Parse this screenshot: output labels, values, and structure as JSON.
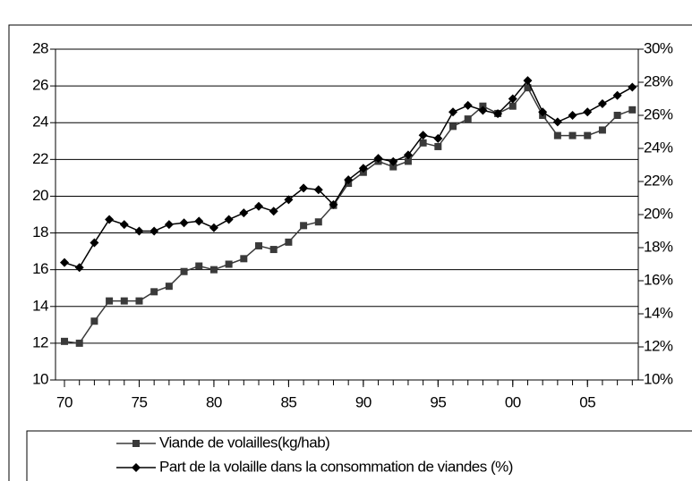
{
  "chart_data": {
    "type": "line",
    "x": [
      1970,
      1971,
      1972,
      1973,
      1974,
      1975,
      1976,
      1977,
      1978,
      1979,
      1980,
      1981,
      1982,
      1983,
      1984,
      1985,
      1986,
      1987,
      1988,
      1989,
      1990,
      1991,
      1992,
      1993,
      1994,
      1995,
      1996,
      1997,
      1998,
      1999,
      2000,
      2001,
      2002,
      2003,
      2004,
      2005,
      2006,
      2007,
      2008
    ],
    "series": [
      {
        "name": "Viande de volailles(kg/hab)",
        "color": "#3a3a3a",
        "marker": "square",
        "values": [
          12.1,
          12.0,
          13.2,
          14.3,
          14.3,
          14.3,
          14.8,
          15.1,
          15.9,
          16.2,
          16.0,
          16.3,
          16.6,
          17.3,
          17.1,
          17.5,
          18.4,
          18.6,
          19.5,
          20.7,
          21.3,
          21.9,
          21.6,
          21.9,
          22.9,
          22.7,
          23.8,
          24.2,
          24.9,
          24.5,
          24.9,
          25.9,
          24.4,
          23.3,
          23.3,
          23.3,
          23.6,
          24.4,
          24.7
        ]
      },
      {
        "name": "Part de la volaille dans la consommation de viandes (%)",
        "color": "#000000",
        "marker": "diamond",
        "axis": "y2",
        "values": [
          17.1,
          16.8,
          18.3,
          19.7,
          19.4,
          19.0,
          19.0,
          19.4,
          19.5,
          19.6,
          19.2,
          19.7,
          20.1,
          20.5,
          20.2,
          20.9,
          21.6,
          21.5,
          20.6,
          22.1,
          22.8,
          23.4,
          23.2,
          23.6,
          24.8,
          24.6,
          26.2,
          26.6,
          26.3,
          26.1,
          27.0,
          28.1,
          26.2,
          25.6,
          26.0,
          26.2,
          26.7,
          27.2,
          27.7
        ]
      }
    ],
    "xlim": [
      1969.4,
      2008.4
    ],
    "xticks": [
      {
        "value": 1970,
        "label": "70"
      },
      {
        "value": 1975,
        "label": "75"
      },
      {
        "value": 1980,
        "label": "80"
      },
      {
        "value": 1985,
        "label": "85"
      },
      {
        "value": 1990,
        "label": "90"
      },
      {
        "value": 1995,
        "label": "95"
      },
      {
        "value": 2000,
        "label": "00"
      },
      {
        "value": 2005,
        "label": "05"
      }
    ],
    "ylim": [
      10,
      28
    ],
    "yticks": [
      10,
      12,
      14,
      16,
      18,
      20,
      22,
      24,
      26,
      28
    ],
    "y2lim": [
      10,
      30
    ],
    "y2ticks": [
      {
        "value": 10,
        "label": "10%"
      },
      {
        "value": 12,
        "label": "12%"
      },
      {
        "value": 14,
        "label": "14%"
      },
      {
        "value": 16,
        "label": "16%"
      },
      {
        "value": 18,
        "label": "18%"
      },
      {
        "value": 20,
        "label": "20%"
      },
      {
        "value": 22,
        "label": "22%"
      },
      {
        "value": 24,
        "label": "24%"
      },
      {
        "value": 26,
        "label": "26%"
      },
      {
        "value": 28,
        "label": "28%"
      },
      {
        "value": 30,
        "label": "30%"
      }
    ],
    "grid": true,
    "legend": "bottom"
  }
}
